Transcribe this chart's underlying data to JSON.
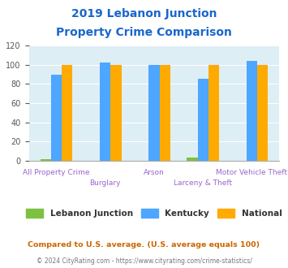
{
  "title_line1": "2019 Lebanon Junction",
  "title_line2": "Property Crime Comparison",
  "categories": [
    "All Property Crime",
    "Burglary",
    "Arson",
    "Larceny & Theft",
    "Motor Vehicle Theft"
  ],
  "lebanon_junction": [
    2,
    0,
    0,
    3,
    0
  ],
  "kentucky": [
    90,
    102,
    100,
    85,
    104
  ],
  "national": [
    100,
    100,
    100,
    100,
    100
  ],
  "lj_color": "#7dc142",
  "ky_color": "#4da6ff",
  "nat_color": "#ffaa00",
  "bg_color": "#ddeef5",
  "ylim": [
    0,
    120
  ],
  "yticks": [
    0,
    20,
    40,
    60,
    80,
    100,
    120
  ],
  "title_color": "#1a66cc",
  "axis_label_color": "#9966cc",
  "footnote1": "Compared to U.S. average. (U.S. average equals 100)",
  "footnote2": "© 2024 CityRating.com - https://www.cityrating.com/crime-statistics/",
  "footnote1_color": "#cc6600",
  "footnote2_color": "#777777",
  "legend_labels": [
    "Lebanon Junction",
    "Kentucky",
    "National"
  ]
}
